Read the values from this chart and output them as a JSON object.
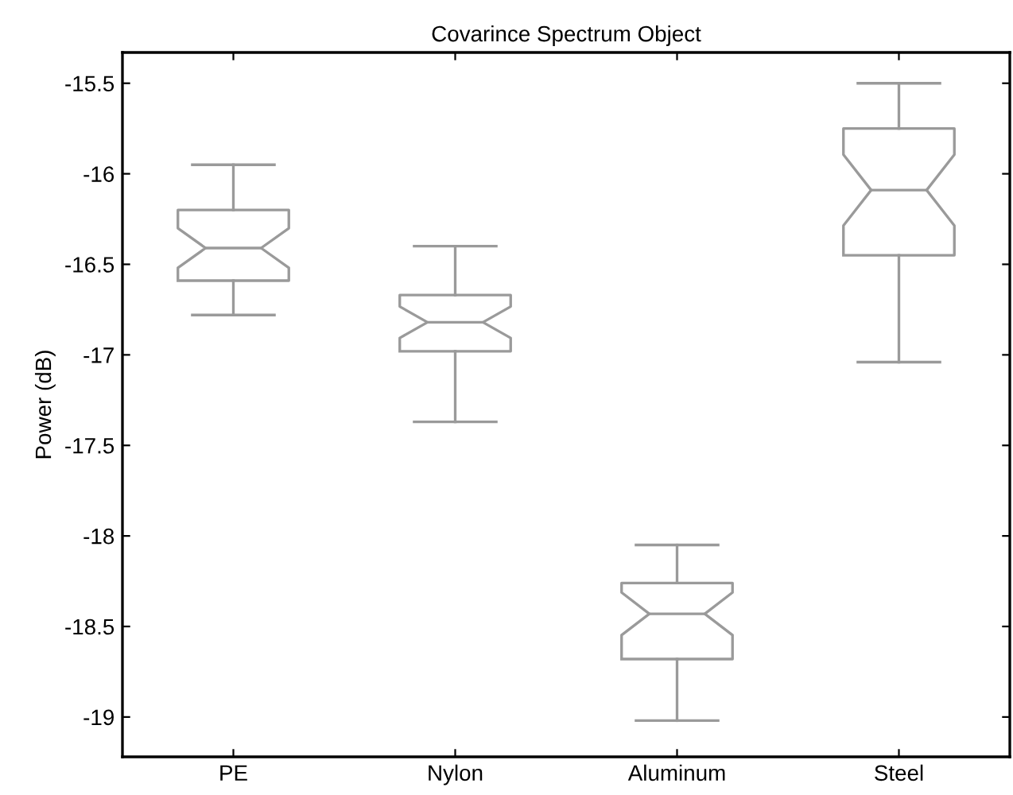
{
  "chart_data": {
    "type": "box",
    "title": "Covarince Spectrum Object",
    "ylabel": "Power (dB)",
    "categories": [
      "PE",
      "Nylon",
      "Aluminum",
      "Steel"
    ],
    "boxes": [
      {
        "low": -16.78,
        "q1": -16.59,
        "median": -16.41,
        "q3": -16.2,
        "high": -15.95
      },
      {
        "low": -17.37,
        "q1": -16.98,
        "median": -16.82,
        "q3": -16.67,
        "high": -16.4
      },
      {
        "low": -19.02,
        "q1": -18.68,
        "median": -18.43,
        "q3": -18.26,
        "high": -18.05
      },
      {
        "low": -17.04,
        "q1": -16.45,
        "median": -16.09,
        "q3": -15.75,
        "high": -15.5
      }
    ],
    "color": "#9a9a9a",
    "ylim": [
      -19.22,
      -15.33
    ],
    "yticks": [
      -19,
      -18.5,
      -18,
      -17.5,
      -17,
      -16.5,
      -16,
      -15.5
    ],
    "grid": false
  }
}
